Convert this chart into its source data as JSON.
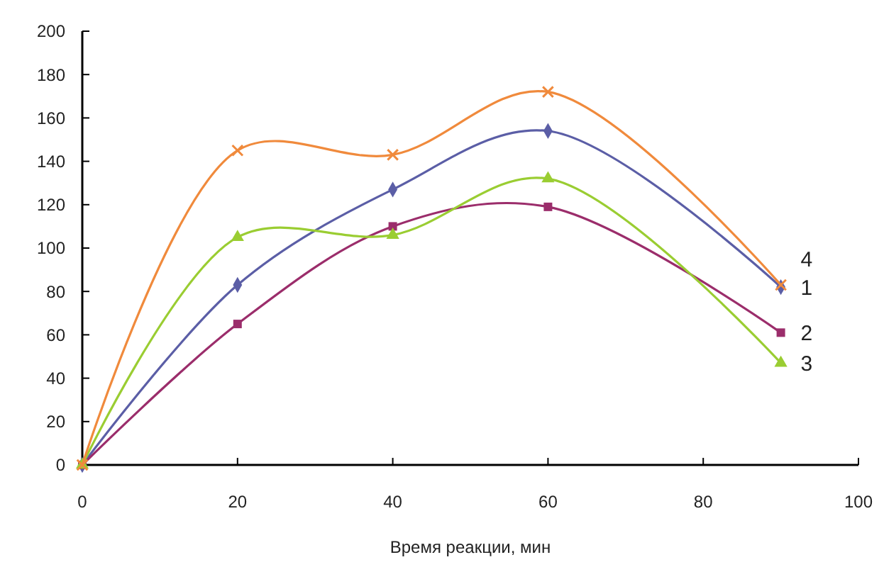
{
  "chart_data": {
    "type": "line",
    "xlabel": "Время реакции, мин",
    "x": [
      0,
      20,
      40,
      60,
      90
    ],
    "xlim": [
      0,
      100
    ],
    "xticks": [
      0,
      20,
      40,
      60,
      80,
      100
    ],
    "ylim": [
      0,
      200
    ],
    "yticks": [
      0,
      20,
      40,
      60,
      80,
      100,
      120,
      140,
      160,
      180,
      200
    ],
    "grid": false,
    "series": [
      {
        "name": "1",
        "color": "#5b5ea6",
        "marker": "diamond",
        "values": [
          0,
          83,
          127,
          154,
          82
        ]
      },
      {
        "name": "2",
        "color": "#9b2d6b",
        "marker": "square",
        "values": [
          0,
          65,
          110,
          119,
          61
        ]
      },
      {
        "name": "3",
        "color": "#9acd32",
        "marker": "triangle",
        "values": [
          0,
          105,
          106,
          132,
          47
        ]
      },
      {
        "name": "4",
        "color": "#f08a3c",
        "marker": "cross",
        "values": [
          0,
          145,
          143,
          172,
          83
        ]
      }
    ]
  }
}
